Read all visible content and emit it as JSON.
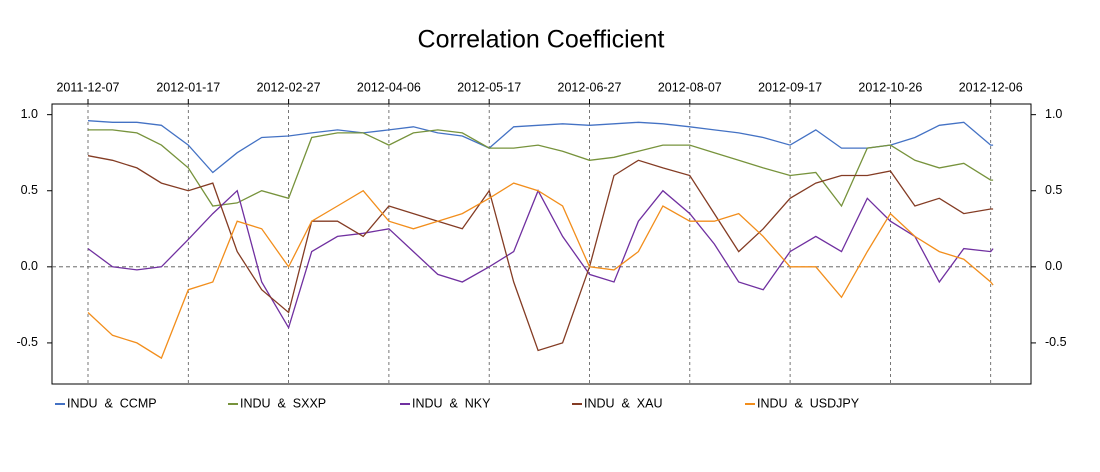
{
  "chart_data": {
    "type": "line",
    "title": "Correlation Coefficient",
    "x": [
      "2011-12-07",
      "2011-12-17",
      "2011-12-27",
      "2012-01-06",
      "2012-01-17",
      "2012-01-27",
      "2012-02-06",
      "2012-02-16",
      "2012-02-27",
      "2012-03-07",
      "2012-03-17",
      "2012-03-27",
      "2012-04-06",
      "2012-04-16",
      "2012-04-26",
      "2012-05-06",
      "2012-05-17",
      "2012-05-27",
      "2012-06-06",
      "2012-06-16",
      "2012-06-27",
      "2012-07-07",
      "2012-07-17",
      "2012-07-27",
      "2012-08-07",
      "2012-08-17",
      "2012-08-27",
      "2012-09-06",
      "2012-09-17",
      "2012-09-27",
      "2012-10-07",
      "2012-10-17",
      "2012-10-26",
      "2012-11-05",
      "2012-11-15",
      "2012-11-25",
      "2012-12-06",
      "2012-12-07"
    ],
    "series": [
      {
        "name": "INDU  &  CCMP",
        "color": "#4472c4",
        "values": [
          0.96,
          0.95,
          0.95,
          0.93,
          0.8,
          0.62,
          0.75,
          0.85,
          0.86,
          0.88,
          0.9,
          0.88,
          0.9,
          0.92,
          0.88,
          0.86,
          0.78,
          0.92,
          0.93,
          0.94,
          0.93,
          0.94,
          0.95,
          0.94,
          0.92,
          0.9,
          0.88,
          0.85,
          0.8,
          0.9,
          0.78,
          0.78,
          0.8,
          0.85,
          0.93,
          0.95,
          0.8,
          0.8
        ]
      },
      {
        "name": "INDU  &  SXXP",
        "color": "#77933c",
        "values": [
          0.9,
          0.9,
          0.88,
          0.8,
          0.65,
          0.4,
          0.42,
          0.5,
          0.45,
          0.85,
          0.88,
          0.88,
          0.8,
          0.88,
          0.9,
          0.88,
          0.78,
          0.78,
          0.8,
          0.76,
          0.7,
          0.72,
          0.76,
          0.8,
          0.8,
          0.75,
          0.7,
          0.65,
          0.6,
          0.62,
          0.4,
          0.78,
          0.8,
          0.7,
          0.65,
          0.68,
          0.57,
          0.57
        ]
      },
      {
        "name": "INDU  &  NKY",
        "color": "#7030a0",
        "values": [
          0.12,
          0.0,
          -0.02,
          0.0,
          0.18,
          0.35,
          0.5,
          -0.1,
          -0.4,
          0.1,
          0.2,
          0.22,
          0.25,
          0.1,
          -0.05,
          -0.1,
          0.0,
          0.1,
          0.5,
          0.2,
          -0.05,
          -0.1,
          0.3,
          0.5,
          0.35,
          0.15,
          -0.1,
          -0.15,
          0.1,
          0.2,
          0.1,
          0.45,
          0.3,
          0.2,
          -0.1,
          0.12,
          0.1,
          0.12
        ]
      },
      {
        "name": "INDU  &  XAU",
        "color": "#843c24",
        "values": [
          0.73,
          0.7,
          0.65,
          0.55,
          0.5,
          0.55,
          0.1,
          -0.15,
          -0.3,
          0.3,
          0.3,
          0.2,
          0.4,
          0.35,
          0.3,
          0.25,
          0.5,
          -0.1,
          -0.55,
          -0.5,
          0.0,
          0.6,
          0.7,
          0.65,
          0.6,
          0.35,
          0.1,
          0.25,
          0.45,
          0.55,
          0.6,
          0.6,
          0.63,
          0.4,
          0.45,
          0.35,
          0.38,
          0.38
        ]
      },
      {
        "name": "INDU  &  USDJPY",
        "color": "#f28e1c",
        "values": [
          -0.3,
          -0.45,
          -0.5,
          -0.6,
          -0.15,
          -0.1,
          0.3,
          0.25,
          0.0,
          0.3,
          0.4,
          0.5,
          0.3,
          0.25,
          0.3,
          0.35,
          0.45,
          0.55,
          0.5,
          0.4,
          0.0,
          -0.02,
          0.1,
          0.4,
          0.3,
          0.3,
          0.35,
          0.2,
          0.0,
          0.0,
          -0.2,
          0.1,
          0.35,
          0.2,
          0.1,
          0.05,
          -0.1,
          -0.12
        ]
      }
    ],
    "xlim": [
      "2011-11-22",
      "2012-12-21"
    ],
    "xticks": [
      "2011-12-07",
      "2012-01-17",
      "2012-02-27",
      "2012-04-06",
      "2012-05-17",
      "2012-06-27",
      "2012-08-07",
      "2012-09-17",
      "2012-10-26",
      "2012-12-06"
    ],
    "ylim": [
      -0.77,
      1.07
    ],
    "yticks": [
      {
        "value": 1,
        "label": "1.0"
      },
      0.5,
      {
        "value": 0,
        "label": "0.0"
      },
      -0.5
    ],
    "reference_line_y": 0,
    "xgrid": true,
    "legend": "bottom"
  }
}
